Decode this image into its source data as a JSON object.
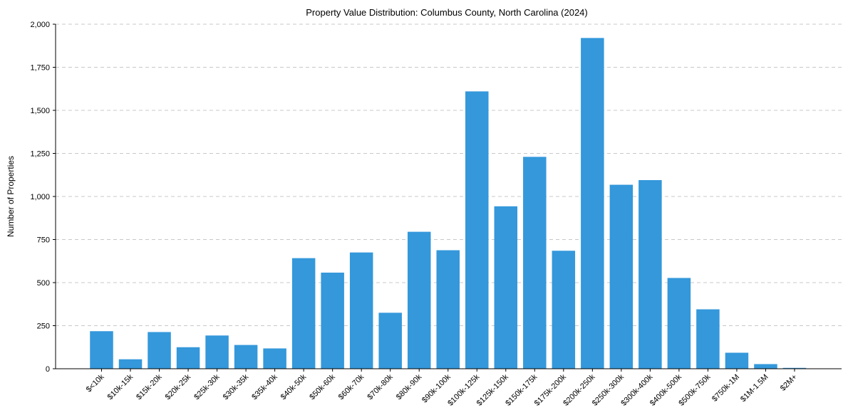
{
  "chart_data": {
    "type": "bar",
    "title": "Property Value Distribution: Columbus County, North Carolina (2024)",
    "xlabel": "",
    "ylabel": "Number of Properties",
    "ylim": [
      0,
      2000
    ],
    "yticks": [
      0,
      250,
      500,
      750,
      1000,
      1250,
      1500,
      1750,
      2000
    ],
    "ytick_labels": [
      "0",
      "250",
      "500",
      "750",
      "1,000",
      "1,250",
      "1,500",
      "1,750",
      "2,000"
    ],
    "grid": true,
    "bar_color": "#3498db",
    "categories": [
      "$<10k",
      "$10k-15k",
      "$15k-20k",
      "$20k-25k",
      "$25k-30k",
      "$30k-35k",
      "$35k-40k",
      "$40k-50k",
      "$50k-60k",
      "$60k-70k",
      "$70k-80k",
      "$80k-90k",
      "$90k-100k",
      "$100k-125k",
      "$125k-150k",
      "$150k-175k",
      "$175k-200k",
      "$200k-250k",
      "$250k-300k",
      "$300k-400k",
      "$400k-500k",
      "$500k-750k",
      "$750k-1M",
      "$1M-1.5M",
      "$2M+"
    ],
    "values": [
      218,
      55,
      213,
      125,
      193,
      138,
      118,
      642,
      558,
      675,
      325,
      795,
      688,
      1610,
      943,
      1230,
      685,
      1920,
      1068,
      1095,
      527,
      345,
      93,
      27,
      5
    ]
  }
}
